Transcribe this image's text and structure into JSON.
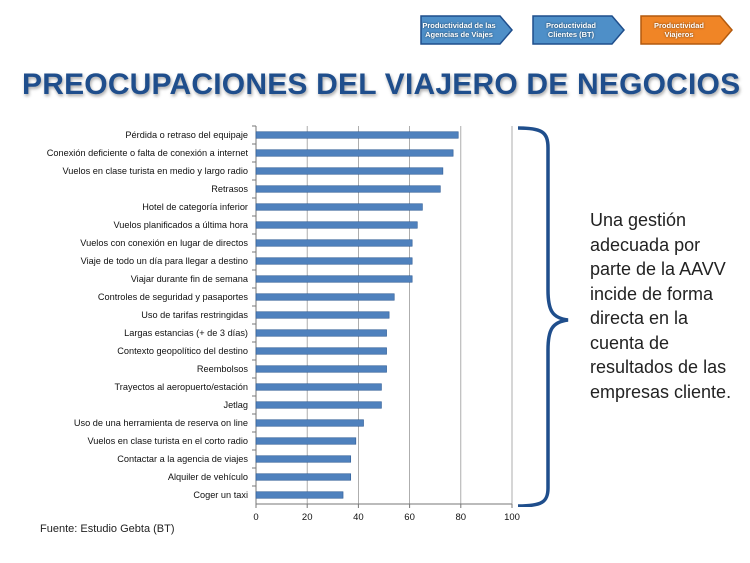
{
  "nav": [
    {
      "label": "Productividad de las Agencias de Viajes",
      "fill": "#4e8fc8",
      "stroke": "#1f4e8c"
    },
    {
      "label": "Productividad Clientes (BT)",
      "fill": "#4e8fc8",
      "stroke": "#1f4e8c"
    },
    {
      "label": "Productividad Viajeros",
      "fill": "#f08526",
      "stroke": "#b35a0e"
    }
  ],
  "title": "PREOCUPACIONES DEL VIAJERO DE NEGOCIOS",
  "source": "Fuente: Estudio Gebta (BT)",
  "side_text": "Una gestión adecuada por parte de la AAVV incide de forma directa en la cuenta de resultados de las empresas cliente.",
  "colors": {
    "bar": "#4f81bd",
    "bar_edge": "#2c5a94",
    "brace": "#1f4e8c",
    "title": "#1f4e8c"
  },
  "chart_data": {
    "type": "bar",
    "orientation": "horizontal",
    "categories": [
      "Pérdida o retraso del equipaje",
      "Conexión deficiente o falta de conexión a internet",
      "Vuelos en clase turista en medio y largo radio",
      "Retrasos",
      "Hotel de categoría inferior",
      "Vuelos planificados a última hora",
      "Vuelos con conexión en lugar de directos",
      "Viaje de todo un día para llegar a destino",
      "Viajar durante fin de semana",
      "Controles de seguridad y pasaportes",
      "Uso de tarifas restringidas",
      "Largas estancias (+ de 3 días)",
      "Contexto geopolítico del destino",
      "Reembolsos",
      "Trayectos al aeropuerto/estación",
      "Jetlag",
      "Uso de una herramienta de reserva on line",
      "Vuelos en clase turista en el corto radio",
      "Contactar a la agencia de viajes",
      "Alquiler de vehículo",
      "Coger un taxi"
    ],
    "values": [
      79,
      77,
      73,
      72,
      65,
      63,
      61,
      61,
      61,
      54,
      52,
      51,
      51,
      51,
      49,
      49,
      42,
      39,
      37,
      37,
      34
    ],
    "xlim": [
      0,
      100
    ],
    "xticks": [
      0,
      20,
      40,
      60,
      80,
      100
    ],
    "grid": true,
    "legend": "none"
  }
}
